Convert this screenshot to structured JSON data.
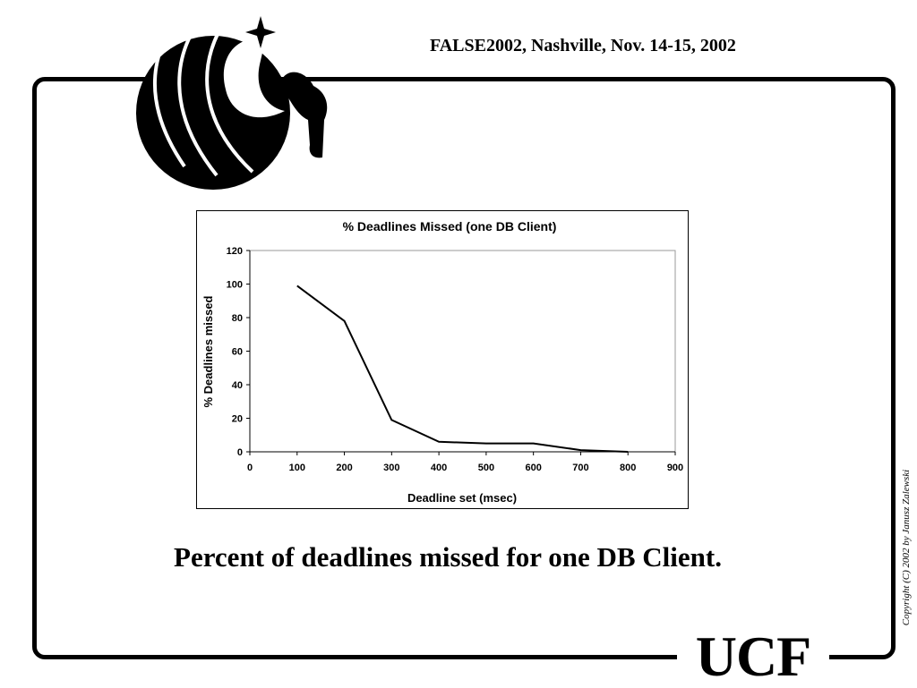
{
  "header": {
    "event": "FALSE2002, Nashville,  Nov. 14-15, 2002"
  },
  "caption": "Percent of deadlines missed for one DB Client.",
  "copyright": "Copyright (C) 2002 by Janusz Zalewski",
  "logo": {
    "icon": "ucf-pegasus-logo",
    "text": "UCF"
  },
  "chart_data": {
    "type": "line",
    "title": "% Deadlines Missed (one DB Client)",
    "xlabel": "Deadline set (msec)",
    "ylabel": "% Deadlines missed",
    "x": [
      100,
      200,
      300,
      400,
      500,
      600,
      700,
      800
    ],
    "values": [
      99,
      78,
      19,
      6,
      5,
      5,
      1,
      0
    ],
    "xlim": [
      0,
      900
    ],
    "ylim": [
      0,
      120
    ],
    "xticks": [
      0,
      100,
      200,
      300,
      400,
      500,
      600,
      700,
      800,
      900
    ],
    "yticks": [
      0,
      20,
      40,
      60,
      80,
      100,
      120
    ],
    "grid": false,
    "legend": "none",
    "line_color": "#000000"
  }
}
